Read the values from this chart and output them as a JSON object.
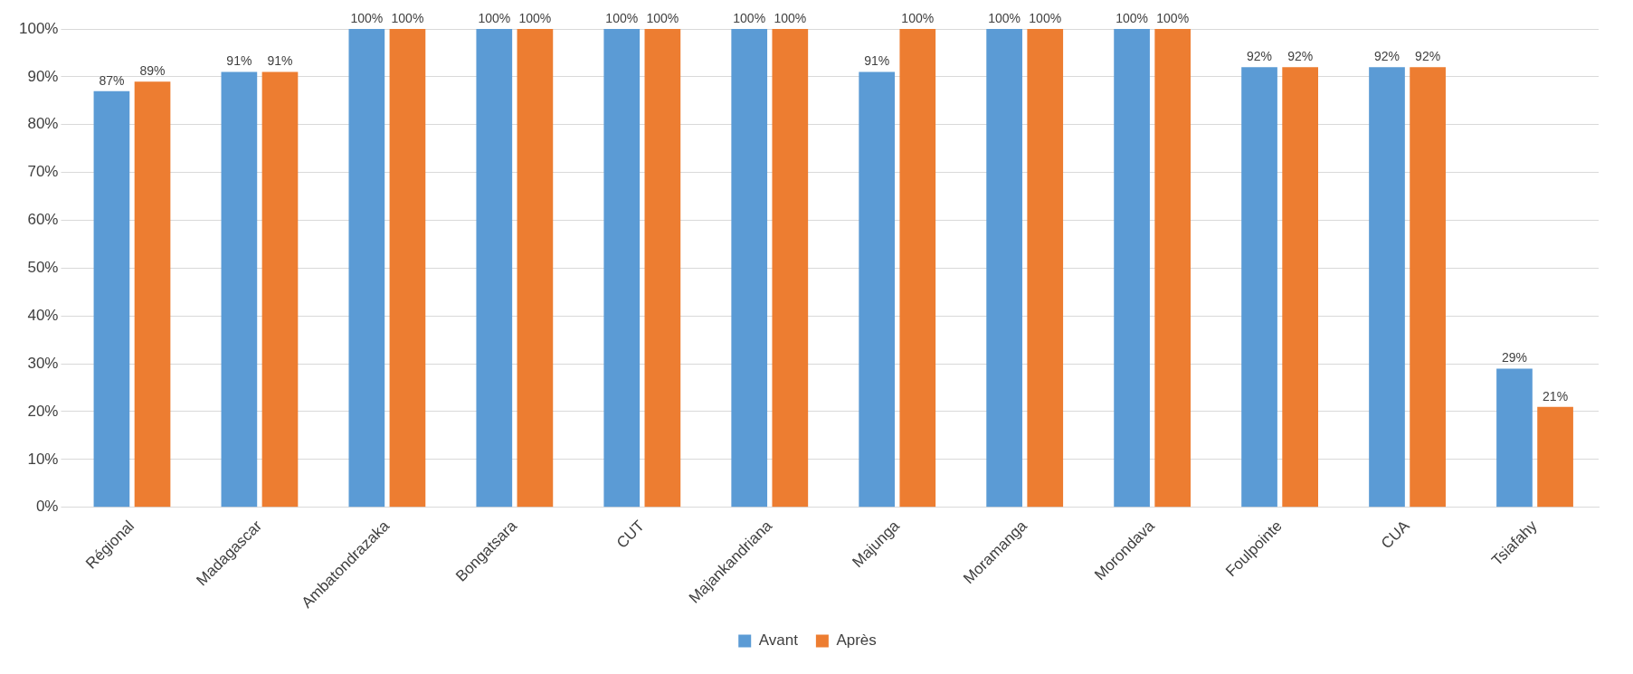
{
  "chart_data": {
    "type": "bar",
    "categories": [
      "Régional",
      "Madagascar",
      "Ambatondrazaka",
      "Bongatsara",
      "CUT",
      "Majankandriana",
      "Majunga",
      "Moramanga",
      "Morondava",
      "Foulpointe",
      "CUA",
      "Tsiafahy"
    ],
    "series": [
      {
        "name": "Avant",
        "color": "#5b9bd5",
        "values": [
          87,
          91,
          100,
          100,
          100,
          100,
          91,
          100,
          100,
          92,
          92,
          29
        ],
        "value_labels": [
          "87%",
          "91%",
          "100%",
          "100%",
          "100%",
          "100%",
          "91%",
          "100%",
          "100%",
          "92%",
          "92%",
          "29%"
        ]
      },
      {
        "name": "Après",
        "color": "#ed7d31",
        "values": [
          89,
          91,
          100,
          100,
          100,
          100,
          100,
          100,
          100,
          92,
          92,
          21
        ],
        "value_labels": [
          "89%",
          "91%",
          "100%",
          "100%",
          "100%",
          "100%",
          "100%",
          "100%",
          "100%",
          "92%",
          "92%",
          "21%"
        ]
      }
    ],
    "ylim": [
      0,
      100
    ],
    "yticks": [
      {
        "value": 0,
        "label": "0%"
      },
      {
        "value": 10,
        "label": "10%"
      },
      {
        "value": 20,
        "label": "20%"
      },
      {
        "value": 30,
        "label": "30%"
      },
      {
        "value": 40,
        "label": "40%"
      },
      {
        "value": 50,
        "label": "50%"
      },
      {
        "value": 60,
        "label": "60%"
      },
      {
        "value": 70,
        "label": "70%"
      },
      {
        "value": 80,
        "label": "80%"
      },
      {
        "value": 90,
        "label": "90%"
      },
      {
        "value": 100,
        "label": "100%"
      }
    ],
    "grid": "y",
    "legend": "bottom"
  }
}
